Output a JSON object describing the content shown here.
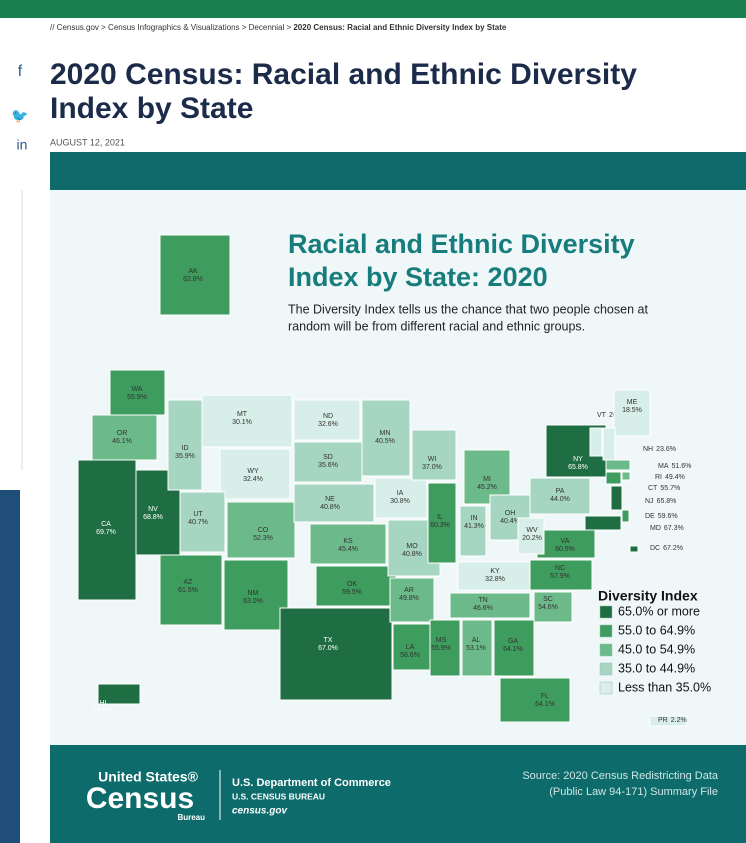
{
  "breadcrumb": [
    "Census.gov",
    "Census Infographics & Visualizations",
    "Decennial",
    "2020 Census: Racial and Ethnic Diversity Index by State"
  ],
  "title": [
    "2020 Census: Racial and Ethnic Diversity",
    "Index by State"
  ],
  "date": "AUGUST 12, 2021",
  "infographic": {
    "title": [
      "Racial and Ethnic Diversity",
      "Index by State: 2020"
    ],
    "subtitle": [
      "The Diversity Index tells us the chance that two people chosen at",
      "random will be from different racial and ethnic groups."
    ],
    "legend": {
      "title": "Diversity Index",
      "items": [
        {
          "label": "65.0% or more",
          "color": "#1f6e43"
        },
        {
          "label": "55.0 to 64.9%",
          "color": "#3d9c5e"
        },
        {
          "label": "45.0 to 54.9%",
          "color": "#6cba8a"
        },
        {
          "label": "35.0 to 44.9%",
          "color": "#a6d5c2"
        },
        {
          "label": "Less than 35.0%",
          "color": "#d8eee8"
        }
      ]
    },
    "states": [
      {
        "code": "AK",
        "value": "62.8%",
        "color": "#3d9c5e"
      },
      {
        "code": "WA",
        "value": "55.9%",
        "color": "#3d9c5e"
      },
      {
        "code": "OR",
        "value": "46.1%",
        "color": "#6cba8a"
      },
      {
        "code": "CA",
        "value": "69.7%",
        "color": "#1f6e43"
      },
      {
        "code": "NV",
        "value": "68.8%",
        "color": "#1f6e43"
      },
      {
        "code": "ID",
        "value": "35.9%",
        "color": "#a6d5c2"
      },
      {
        "code": "MT",
        "value": "30.1%",
        "color": "#d8eee8"
      },
      {
        "code": "WY",
        "value": "32.4%",
        "color": "#d8eee8"
      },
      {
        "code": "UT",
        "value": "40.7%",
        "color": "#a6d5c2"
      },
      {
        "code": "CO",
        "value": "52.3%",
        "color": "#6cba8a"
      },
      {
        "code": "AZ",
        "value": "61.5%",
        "color": "#3d9c5e"
      },
      {
        "code": "NM",
        "value": "63.0%",
        "color": "#3d9c5e"
      },
      {
        "code": "ND",
        "value": "32.6%",
        "color": "#d8eee8"
      },
      {
        "code": "SD",
        "value": "35.6%",
        "color": "#a6d5c2"
      },
      {
        "code": "NE",
        "value": "40.8%",
        "color": "#a6d5c2"
      },
      {
        "code": "KS",
        "value": "45.4%",
        "color": "#6cba8a"
      },
      {
        "code": "OK",
        "value": "59.5%",
        "color": "#3d9c5e"
      },
      {
        "code": "TX",
        "value": "67.0%",
        "color": "#1f6e43"
      },
      {
        "code": "MN",
        "value": "40.5%",
        "color": "#a6d5c2"
      },
      {
        "code": "IA",
        "value": "30.8%",
        "color": "#d8eee8"
      },
      {
        "code": "MO",
        "value": "40.8%",
        "color": "#a6d5c2"
      },
      {
        "code": "AR",
        "value": "49.8%",
        "color": "#6cba8a"
      },
      {
        "code": "LA",
        "value": "58.6%",
        "color": "#3d9c5e"
      },
      {
        "code": "WI",
        "value": "37.0%",
        "color": "#a6d5c2"
      },
      {
        "code": "IL",
        "value": "60.3%",
        "color": "#3d9c5e"
      },
      {
        "code": "MI",
        "value": "45.2%",
        "color": "#6cba8a"
      },
      {
        "code": "IN",
        "value": "41.3%",
        "color": "#a6d5c2"
      },
      {
        "code": "OH",
        "value": "40.4%",
        "color": "#a6d5c2"
      },
      {
        "code": "KY",
        "value": "32.8%",
        "color": "#d8eee8"
      },
      {
        "code": "TN",
        "value": "46.6%",
        "color": "#6cba8a"
      },
      {
        "code": "MS",
        "value": "55.9%",
        "color": "#3d9c5e"
      },
      {
        "code": "AL",
        "value": "53.1%",
        "color": "#6cba8a"
      },
      {
        "code": "GA",
        "value": "64.1%",
        "color": "#3d9c5e"
      },
      {
        "code": "FL",
        "value": "64.1%",
        "color": "#3d9c5e"
      },
      {
        "code": "SC",
        "value": "54.6%",
        "color": "#6cba8a"
      },
      {
        "code": "NC",
        "value": "57.9%",
        "color": "#3d9c5e"
      },
      {
        "code": "VA",
        "value": "60.5%",
        "color": "#3d9c5e"
      },
      {
        "code": "WV",
        "value": "20.2%",
        "color": "#d8eee8"
      },
      {
        "code": "PA",
        "value": "44.0%",
        "color": "#a6d5c2"
      },
      {
        "code": "NY",
        "value": "65.8%",
        "color": "#1f6e43"
      },
      {
        "code": "VT",
        "value": "20.2%",
        "color": "#d8eee8"
      },
      {
        "code": "ME",
        "value": "18.5%",
        "color": "#d8eee8"
      },
      {
        "code": "NH",
        "value": "23.6%",
        "color": "#d8eee8"
      },
      {
        "code": "MA",
        "value": "51.6%",
        "color": "#6cba8a"
      },
      {
        "code": "RI",
        "value": "49.4%",
        "color": "#6cba8a"
      },
      {
        "code": "CT",
        "value": "55.7%",
        "color": "#3d9c5e"
      },
      {
        "code": "NJ",
        "value": "65.8%",
        "color": "#1f6e43"
      },
      {
        "code": "DE",
        "value": "59.6%",
        "color": "#3d9c5e"
      },
      {
        "code": "MD",
        "value": "67.3%",
        "color": "#1f6e43"
      },
      {
        "code": "DC",
        "value": "67.2%",
        "color": "#1f6e43"
      },
      {
        "code": "HI",
        "value": "76.0%",
        "color": "#1f6e43"
      },
      {
        "code": "PR",
        "value": "2.2%",
        "color": "#d8eee8"
      }
    ],
    "footer": {
      "logo": [
        "United States®",
        "Census",
        "Bureau"
      ],
      "agency": [
        "U.S. Department of Commerce",
        "U.S. CENSUS BUREAU",
        "census.gov"
      ],
      "source": [
        "Source: 2020 Census Redistricting Data",
        "(Public Law 94-171) Summary File"
      ]
    }
  }
}
